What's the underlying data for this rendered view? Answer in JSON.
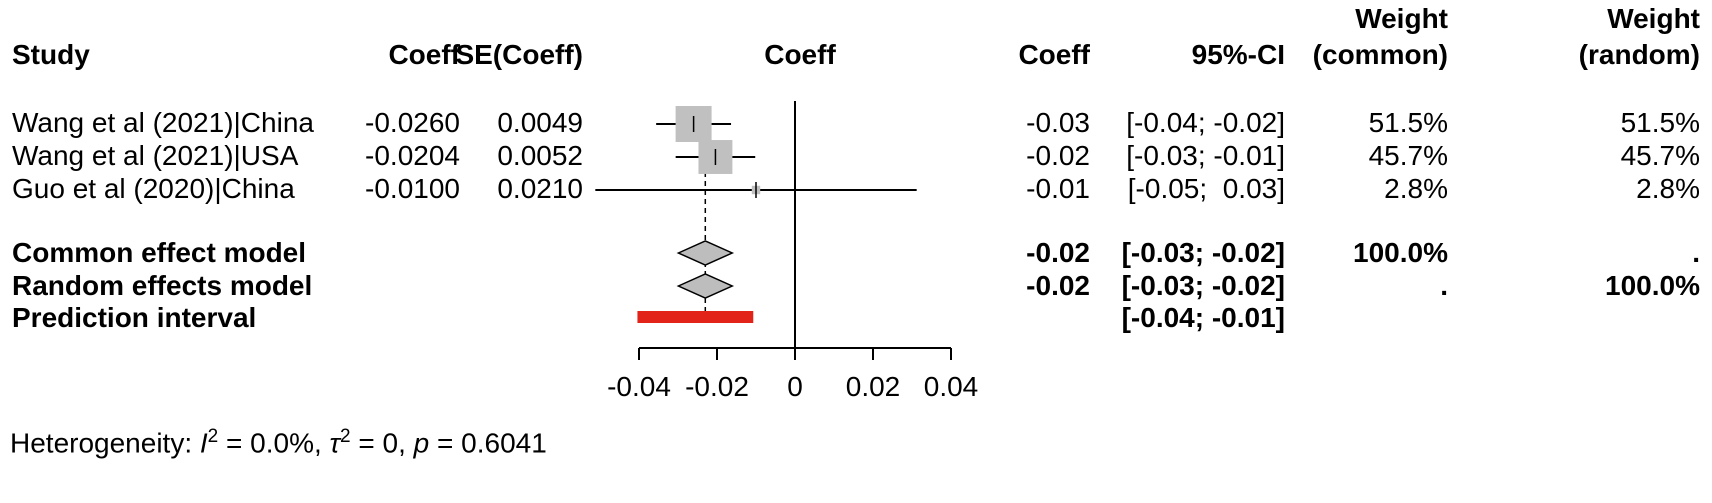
{
  "header": {
    "study": "Study",
    "coeff": "Coeff",
    "se_coeff": "SE(Coeff)",
    "plot_label": "Coeff",
    "coeff_right": "Coeff",
    "ci": "95%-CI",
    "weight_common_top": "Weight",
    "weight_common_bottom": "(common)",
    "weight_random_top": "Weight",
    "weight_random_bottom": "(random)"
  },
  "chart_data": {
    "type": "forest",
    "x_ticks": [
      -0.04,
      -0.02,
      0,
      0.02,
      0.04
    ],
    "x_tick_labels": [
      "-0.04",
      "-0.02",
      "0",
      "0.02",
      "0.04"
    ],
    "xlim": [
      -0.055,
      0.045
    ],
    "zero_line": 0,
    "pooled_dashed_line": -0.023,
    "studies": [
      {
        "study": "Wang et al (2021)|China",
        "coeff": "-0.0260",
        "se": "0.0049",
        "estimate": -0.026,
        "ci_low": -0.0356,
        "ci_high": -0.0164,
        "coeff_rounded": "-0.03",
        "ci_text": "[-0.04; -0.02]",
        "weight_common": "51.5%",
        "weight_random": "51.5%",
        "weight_pct": 51.5
      },
      {
        "study": "Wang et al (2021)|USA",
        "coeff": "-0.0204",
        "se": "0.0052",
        "estimate": -0.0204,
        "ci_low": -0.0306,
        "ci_high": -0.0102,
        "coeff_rounded": "-0.02",
        "ci_text": "[-0.03; -0.01]",
        "weight_common": "45.7%",
        "weight_random": "45.7%",
        "weight_pct": 45.7
      },
      {
        "study": "Guo et al (2020)|China",
        "coeff": "-0.0100",
        "se": "0.0210",
        "estimate": -0.01,
        "ci_low": -0.0512,
        "ci_high": 0.0312,
        "coeff_rounded": "-0.01",
        "ci_text": "[-0.05;  0.03]",
        "weight_common": "2.8%",
        "weight_random": "2.8%",
        "weight_pct": 2.8
      }
    ],
    "summaries": [
      {
        "label": "Common effect model",
        "estimate": -0.023,
        "ci_low": -0.0299,
        "ci_high": -0.0161,
        "coeff_rounded": "-0.02",
        "ci_text": "[-0.03; -0.02]",
        "weight_common": "100.0%",
        "weight_random": "."
      },
      {
        "label": "Random effects model",
        "estimate": -0.023,
        "ci_low": -0.0299,
        "ci_high": -0.0161,
        "coeff_rounded": "-0.02",
        "ci_text": "[-0.03; -0.02]",
        "weight_common": ".",
        "weight_random": "100.0%"
      }
    ],
    "prediction": {
      "label": "Prediction interval",
      "ci_low": -0.0404,
      "ci_high": -0.0107,
      "ci_text": "[-0.04; -0.01]"
    },
    "colors": {
      "square": "#c0c0c0",
      "diamond": "#bdbdbd",
      "prediction_bar": "#e2231a",
      "line": "#000000"
    }
  },
  "footer": {
    "prefix": "Heterogeneity: ",
    "i_symbol": "I",
    "i_sup": "2",
    "after_i": " = 0.0%, ",
    "tau_symbol": "τ",
    "tau_sup": "2",
    "after_tau": " = 0, ",
    "p_symbol": "p",
    "after_p": " = 0.6041"
  }
}
